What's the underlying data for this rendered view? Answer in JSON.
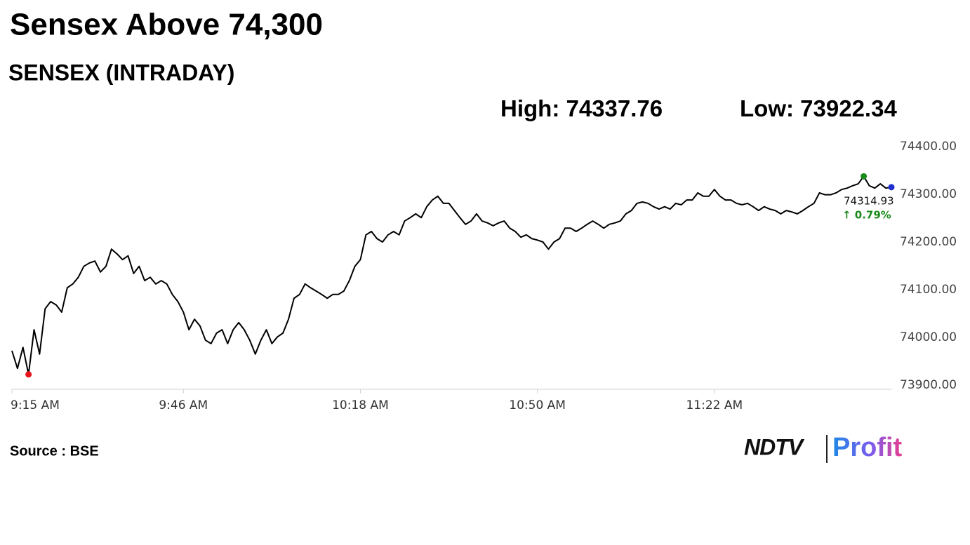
{
  "chart_data": {
    "type": "line",
    "title": "Sensex Above 74,300",
    "subtitle": "SENSEX (INTRADAY)",
    "high_label": "High:",
    "high": 74337.76,
    "high_color": "#1a8a1a",
    "low_label": "Low:",
    "low": 73922.34,
    "low_color": "#e8141b",
    "last_color": "#1f2fd0",
    "change": "↑ 0.79%",
    "change_color": "#1a8a1a",
    "source": "Source : BSE",
    "brand": [
      "NDTV",
      "Profit"
    ],
    "color": "#000000",
    "ylim": [
      73900,
      74400
    ],
    "yticks": [
      {
        "value": 73900,
        "label": "73900.00"
      },
      {
        "value": 74000,
        "label": "74000.00"
      },
      {
        "value": 74100,
        "label": "74100.00"
      },
      {
        "value": 74200,
        "label": "74200.00"
      },
      {
        "value": 74300,
        "label": "74300.00"
      },
      {
        "value": 74400,
        "label": "74400.00"
      }
    ],
    "categories": [
      "9:15 AM",
      null,
      null,
      null,
      null,
      null,
      null,
      null,
      null,
      null,
      null,
      null,
      null,
      null,
      null,
      null,
      null,
      null,
      null,
      null,
      null,
      null,
      null,
      null,
      null,
      null,
      null,
      null,
      null,
      null,
      null,
      "9:46 AM",
      null,
      null,
      null,
      null,
      null,
      null,
      null,
      null,
      null,
      null,
      null,
      null,
      null,
      null,
      null,
      null,
      null,
      null,
      null,
      null,
      null,
      null,
      null,
      null,
      null,
      null,
      null,
      null,
      null,
      null,
      null,
      "10:18 AM",
      null,
      null,
      null,
      null,
      null,
      null,
      null,
      null,
      null,
      null,
      null,
      null,
      null,
      null,
      null,
      null,
      null,
      null,
      null,
      null,
      null,
      null,
      null,
      null,
      null,
      null,
      null,
      null,
      null,
      null,
      null,
      "10:50 AM",
      null,
      null,
      null,
      null,
      null,
      null,
      null,
      null,
      null,
      null,
      null,
      null,
      null,
      null,
      null,
      null,
      null,
      null,
      null,
      null,
      null,
      null,
      null,
      null,
      null,
      null,
      null,
      null,
      null,
      null,
      null,
      "11:22 AM",
      null,
      null,
      null,
      null,
      null,
      null,
      null,
      null,
      null,
      null,
      null,
      null,
      null,
      null,
      null,
      null,
      null,
      null,
      null,
      null,
      null,
      null,
      null,
      null,
      null,
      null,
      null,
      null,
      null,
      null,
      null,
      null
    ],
    "values": [
      73972,
      73935,
      73979,
      73922.34,
      74016,
      73965,
      74060,
      74075,
      74068,
      74053,
      74104,
      74112,
      74126,
      74149,
      74156,
      74160,
      74137,
      74149,
      74185,
      74175,
      74163,
      74171,
      74134,
      74149,
      74119,
      74126,
      74112,
      74119,
      74112,
      74090,
      74075,
      74053,
      74016,
      74038,
      74024,
      73994,
      73987,
      74009,
      74016,
      73987,
      74016,
      74031,
      74016,
      73994,
      73965,
      73994,
      74016,
      73987,
      74001,
      74009,
      74038,
      74082,
      74090,
      74112,
      74104,
      74097,
      74090,
      74082,
      74090,
      74090,
      74097,
      74119,
      74149,
      74163,
      74215,
      74222,
      74207,
      74200,
      74215,
      74222,
      74215,
      74244,
      74251,
      74259,
      74251,
      74274,
      74288,
      74296,
      74281,
      74281,
      74266,
      74251,
      74237,
      74244,
      74259,
      74244,
      74240,
      74234,
      74240,
      74244,
      74229,
      74222,
      74210,
      74215,
      74207,
      74204,
      74200,
      74185,
      74200,
      74207,
      74229,
      74229,
      74222,
      74229,
      74237,
      74244,
      74237,
      74229,
      74237,
      74240,
      74244,
      74259,
      74266,
      74281,
      74284,
      74281,
      74274,
      74269,
      74274,
      74269,
      74281,
      74278,
      74288,
      74288,
      74303,
      74296,
      74296,
      74310,
      74296,
      74288,
      74288,
      74281,
      74278,
      74281,
      74274,
      74266,
      74274,
      74269,
      74266,
      74259,
      74266,
      74263,
      74259,
      74266,
      74274,
      74281,
      74303,
      74299,
      74299,
      74303,
      74310,
      74313,
      74318,
      74322,
      74337.76,
      74318,
      74313,
      74322,
      74313,
      74314.93
    ]
  }
}
